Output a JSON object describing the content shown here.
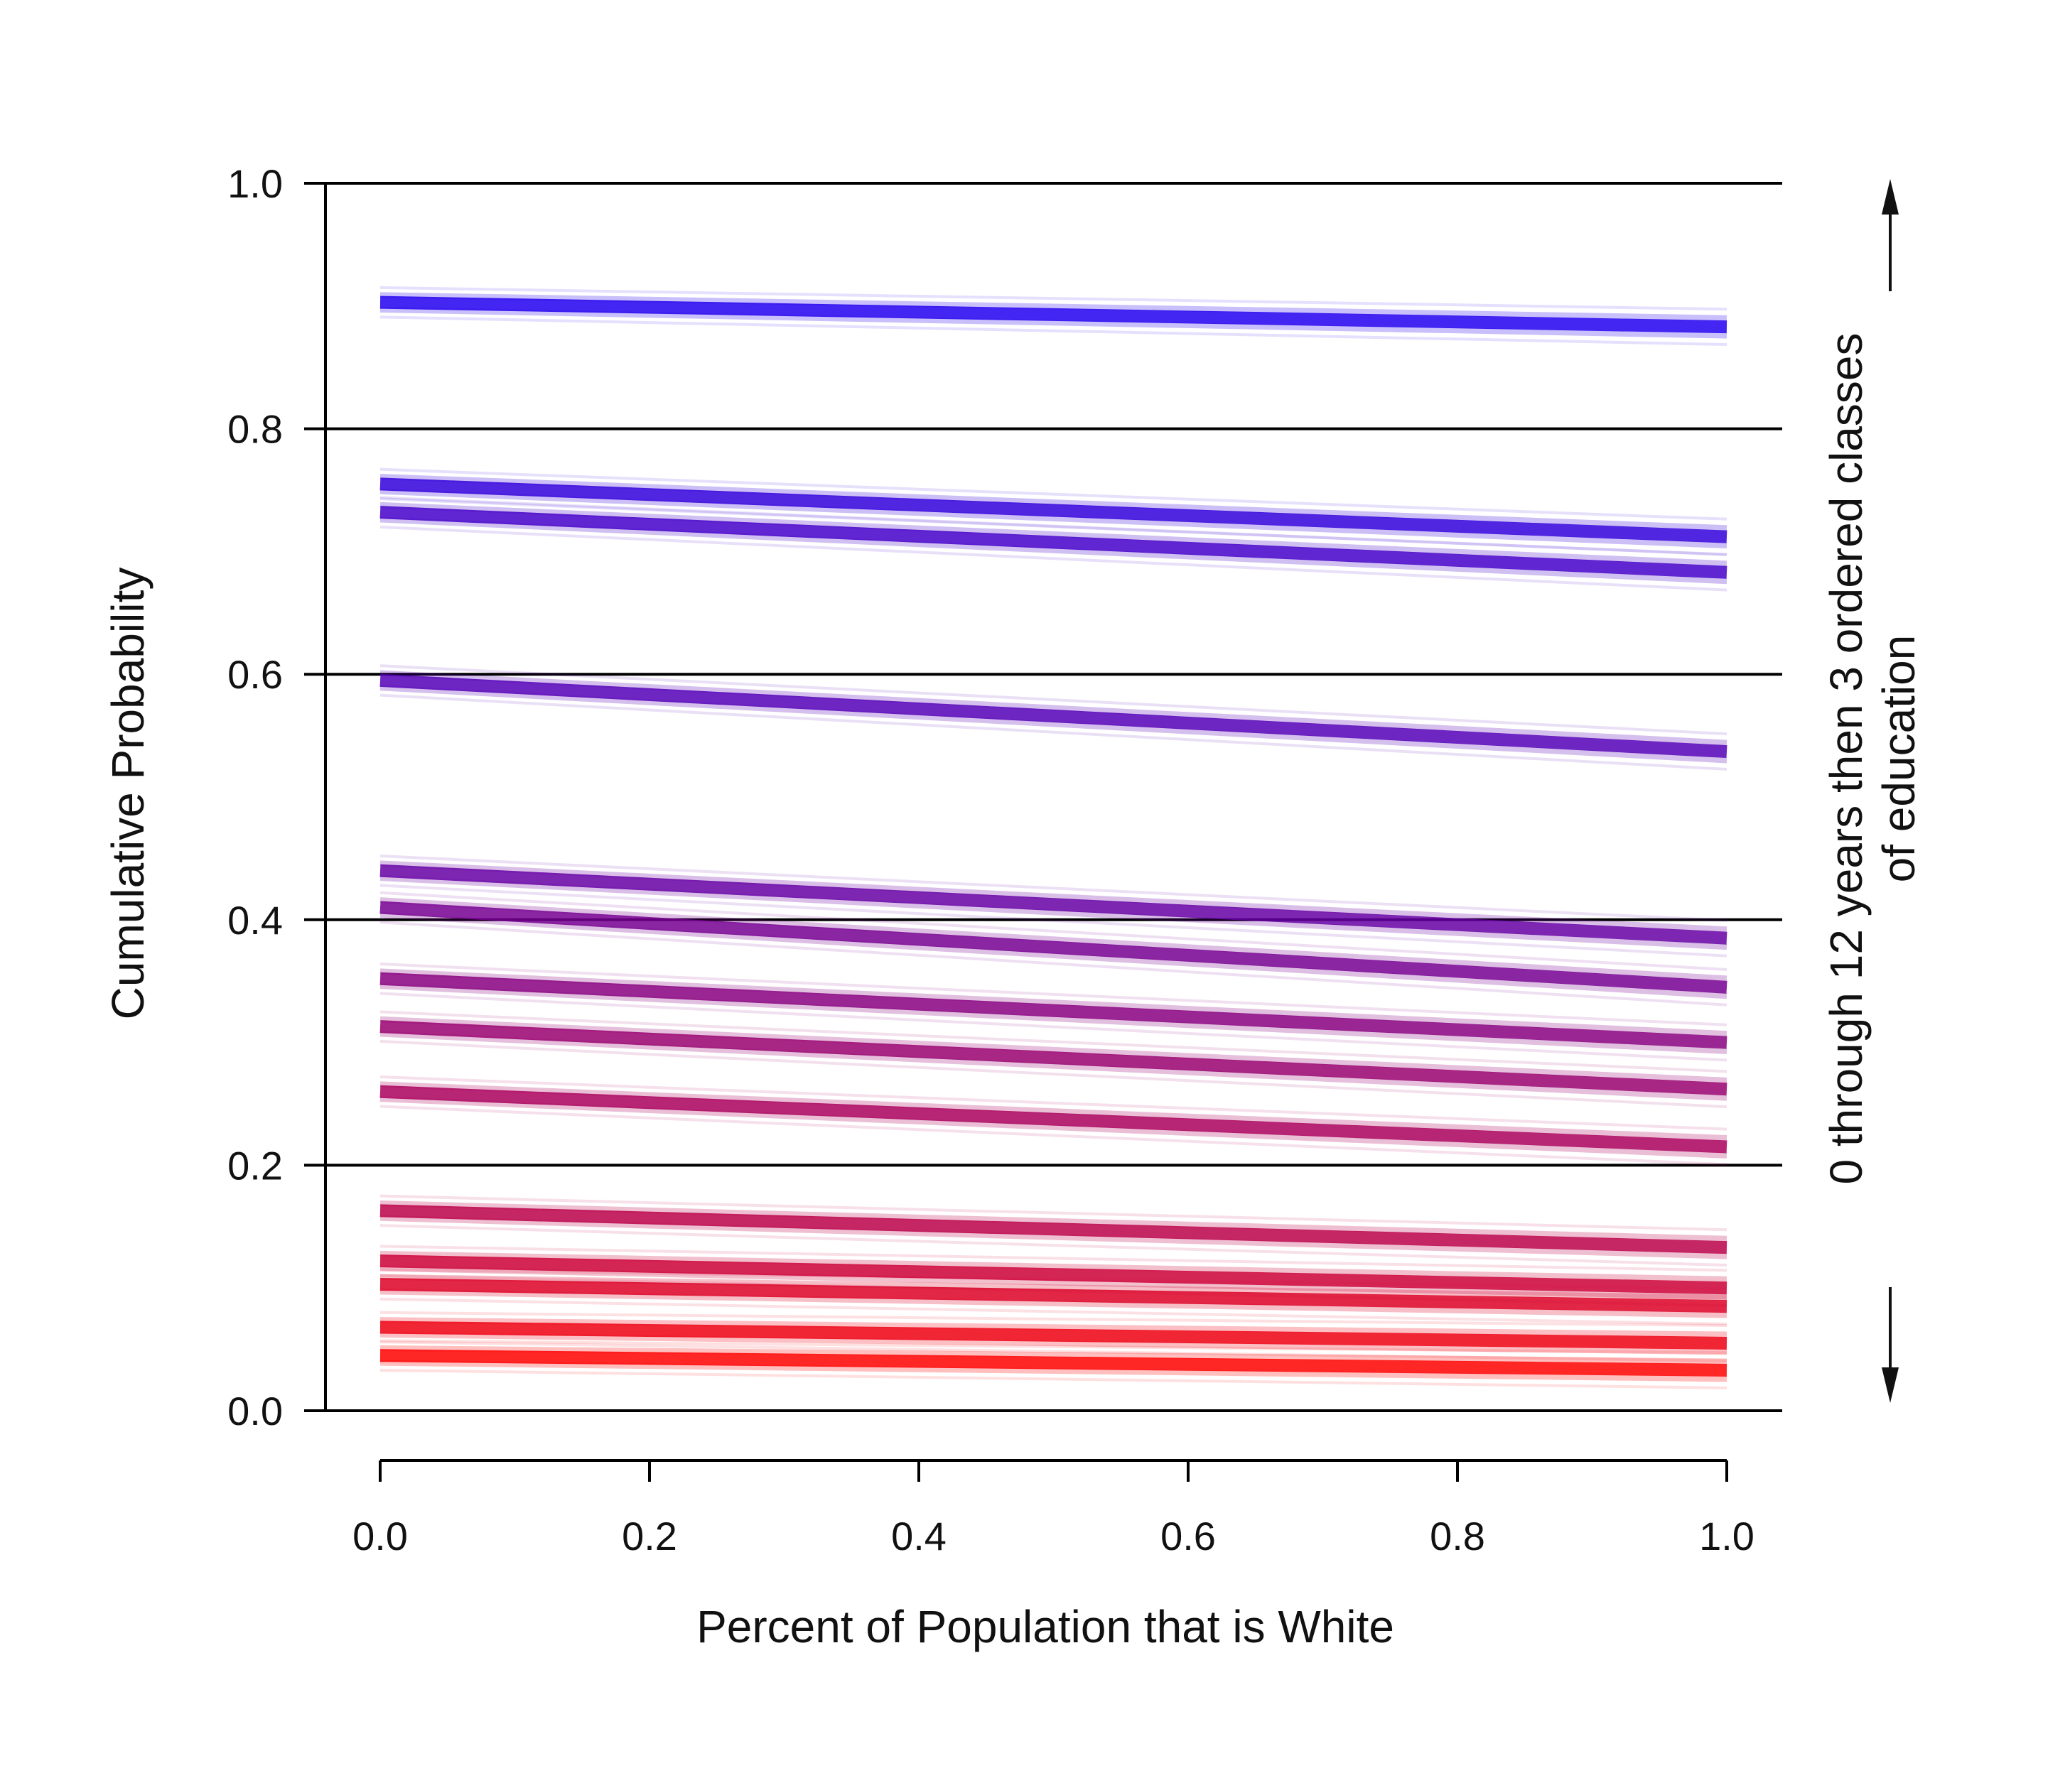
{
  "chart_data": {
    "type": "line",
    "title": "",
    "xlabel": "Percent of Population that is White",
    "ylabel": "Cumulative Probability",
    "side_label_lines": [
      "0 through 12 years then 3 ordered classes",
      "of education"
    ],
    "xlim": [
      0.0,
      1.0
    ],
    "ylim": [
      0.0,
      1.0
    ],
    "x_ticks": [
      "0.0",
      "0.2",
      "0.4",
      "0.6",
      "0.8",
      "1.0"
    ],
    "y_ticks": [
      "0.0",
      "0.2",
      "0.4",
      "0.6",
      "0.8",
      "1.0"
    ],
    "grid": "horizontal",
    "color_low": "#ff0000",
    "color_high": "#2200ee",
    "series": [
      {
        "x": [
          0.0,
          1.0
        ],
        "y": [
          0.045,
          0.033
        ]
      },
      {
        "x": [
          0.0,
          1.0
        ],
        "y": [
          0.068,
          0.055
        ]
      },
      {
        "x": [
          0.0,
          1.0
        ],
        "y": [
          0.103,
          0.085
        ]
      },
      {
        "x": [
          0.0,
          1.0
        ],
        "y": [
          0.122,
          0.1
        ]
      },
      {
        "x": [
          0.0,
          1.0
        ],
        "y": [
          0.163,
          0.133
        ]
      },
      {
        "x": [
          0.0,
          1.0
        ],
        "y": [
          0.26,
          0.215
        ]
      },
      {
        "x": [
          0.0,
          1.0
        ],
        "y": [
          0.313,
          0.262
        ]
      },
      {
        "x": [
          0.0,
          1.0
        ],
        "y": [
          0.352,
          0.3
        ]
      },
      {
        "x": [
          0.0,
          1.0
        ],
        "y": [
          0.41,
          0.345
        ]
      },
      {
        "x": [
          0.0,
          1.0
        ],
        "y": [
          0.44,
          0.385
        ]
      },
      {
        "x": [
          0.0,
          1.0
        ],
        "y": [
          0.595,
          0.537
        ]
      },
      {
        "x": [
          0.0,
          1.0
        ],
        "y": [
          0.732,
          0.683
        ]
      },
      {
        "x": [
          0.0,
          1.0
        ],
        "y": [
          0.755,
          0.712
        ]
      },
      {
        "x": [
          0.0,
          1.0
        ],
        "y": [
          0.903,
          0.883
        ]
      }
    ]
  }
}
